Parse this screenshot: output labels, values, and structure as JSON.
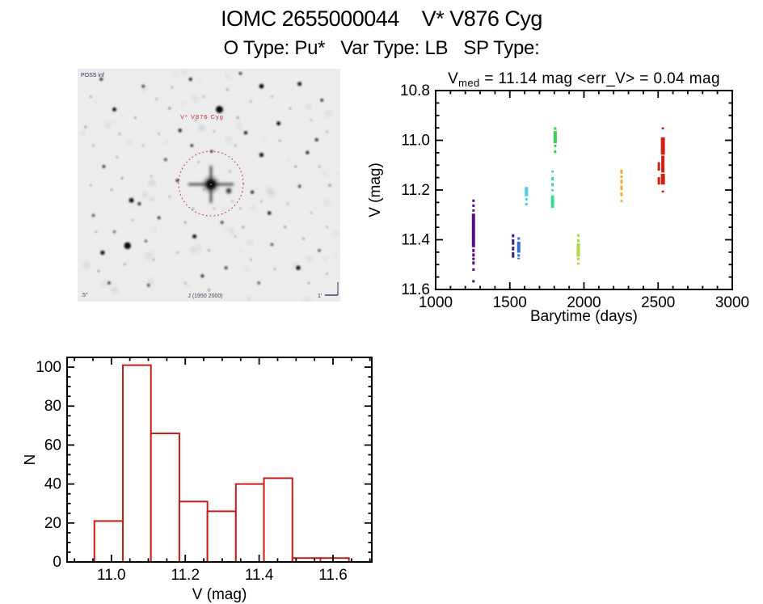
{
  "header": {
    "title": "IOMC 2655000044    V* V876 Cyg",
    "subtitle": "O Type: Pu*   Var Type: LB   SP Type:"
  },
  "chart_data": [
    {
      "id": "finding_chart",
      "type": "starfield-image",
      "description": "Optical finding chart, inverted grayscale, target star circled",
      "background_color": "#ececec",
      "circle_color": "#c43434",
      "labels": {
        "top_left": "POSS inf",
        "target_label": "V* V876 Cyg",
        "bottom_left": ".5°",
        "bottom_center": "J (1950 2000)",
        "scale_label": "1'"
      },
      "target_circle": {
        "cx": 165,
        "cy": 142,
        "r": 40
      },
      "center_star": {
        "x": 165,
        "y": 143,
        "core_r": 6.5,
        "spike_h": 56,
        "spike_v": 46
      },
      "companion_star": {
        "x": 187,
        "y": 151,
        "r": 3.2
      },
      "stars": [
        [
          54,
          17.5,
          4.4,
          1
        ],
        [
          19,
          76,
          4.2,
          1
        ],
        [
          20.5,
          56.5,
          3.0,
          0.95
        ],
        [
          23.5,
          58,
          2.0,
          0.85
        ],
        [
          70,
          37,
          2.7,
          0.95
        ],
        [
          76.5,
          23.5,
          2.5,
          0.95
        ],
        [
          70,
          7.5,
          2.9,
          1
        ],
        [
          84.5,
          6.5,
          2.5,
          0.95
        ],
        [
          14,
          17.5,
          2.5,
          0.95
        ],
        [
          9.5,
          79,
          2.7,
          0.95
        ],
        [
          44.5,
          72,
          2.5,
          0.95
        ],
        [
          84,
          85.5,
          2.7,
          0.95
        ],
        [
          73,
          62,
          2.3,
          0.9
        ],
        [
          66.5,
          53,
          2.1,
          0.85
        ],
        [
          64,
          27.5,
          2.2,
          0.9
        ],
        [
          39,
          26.5,
          2.2,
          0.9
        ],
        [
          43.5,
          33,
          1.9,
          0.8
        ],
        [
          51,
          35.5,
          1.7,
          0.85
        ],
        [
          87.5,
          36,
          2.1,
          0.9
        ],
        [
          91,
          30.5,
          2.0,
          0.85
        ],
        [
          55,
          66,
          1.8,
          0.8
        ],
        [
          47.5,
          89,
          2.1,
          0.85
        ],
        [
          56.5,
          85.5,
          1.9,
          0.8
        ],
        [
          31,
          64,
          1.9,
          0.8
        ],
        [
          33.5,
          39,
          1.8,
          0.75
        ],
        [
          84.5,
          50.5,
          1.8,
          0.8
        ],
        [
          9,
          4.5,
          2.0,
          0.85
        ],
        [
          25,
          7.5,
          1.8,
          0.8
        ],
        [
          43,
          4.5,
          2.0,
          0.9
        ],
        [
          62,
          2,
          1.8,
          0.85
        ],
        [
          93,
          13.5,
          1.9,
          0.85
        ],
        [
          10,
          42,
          1.9,
          0.8
        ],
        [
          6,
          63,
          1.7,
          0.75
        ],
        [
          14,
          70,
          1.6,
          0.7
        ],
        [
          26,
          74,
          1.6,
          0.7
        ],
        [
          74,
          75.5,
          1.7,
          0.75
        ],
        [
          92,
          78,
          1.7,
          0.75
        ],
        [
          69,
          92,
          1.7,
          0.75
        ],
        [
          27,
          93,
          1.7,
          0.8
        ],
        [
          12,
          92,
          1.8,
          0.8
        ],
        [
          38,
          48,
          2.0,
          0.85
        ],
        [
          5,
          12,
          1.1,
          0.55
        ],
        [
          16,
          28,
          1.0,
          0.5
        ],
        [
          22,
          21,
          1.1,
          0.55
        ],
        [
          30,
          13,
          1.0,
          0.5
        ],
        [
          36,
          8,
          1.1,
          0.5
        ],
        [
          48,
          12,
          1.0,
          0.5
        ],
        [
          57,
          9,
          1.1,
          0.55
        ],
        [
          66,
          14,
          1.0,
          0.5
        ],
        [
          74,
          12,
          1.0,
          0.5
        ],
        [
          81,
          17,
          1.1,
          0.5
        ],
        [
          89,
          22,
          1.0,
          0.5
        ],
        [
          95,
          27,
          1.0,
          0.5
        ],
        [
          6,
          33,
          1.0,
          0.5
        ],
        [
          15,
          38,
          1.1,
          0.5
        ],
        [
          25,
          33,
          1.0,
          0.45
        ],
        [
          31,
          28,
          1.0,
          0.45
        ],
        [
          45,
          22,
          1.1,
          0.5
        ],
        [
          52,
          27,
          1.0,
          0.5
        ],
        [
          60,
          33,
          1.0,
          0.5
        ],
        [
          77,
          31,
          1.0,
          0.5
        ],
        [
          92,
          42,
          1.0,
          0.5
        ],
        [
          5,
          50,
          1.0,
          0.5
        ],
        [
          13,
          52,
          1.1,
          0.5
        ],
        [
          28,
          46,
          1.0,
          0.45
        ],
        [
          35,
          55,
          1.0,
          0.5
        ],
        [
          44,
          60,
          1.1,
          0.5
        ],
        [
          52,
          60,
          1.0,
          0.45
        ],
        [
          62,
          60,
          1.0,
          0.5
        ],
        [
          70,
          57,
          1.0,
          0.5
        ],
        [
          80,
          58,
          1.0,
          0.45
        ],
        [
          89,
          62,
          1.0,
          0.5
        ],
        [
          95,
          68,
          1.0,
          0.5
        ],
        [
          7,
          70,
          1.0,
          0.5
        ],
        [
          18,
          84,
          1.1,
          0.5
        ],
        [
          29,
          82,
          1.0,
          0.5
        ],
        [
          38,
          79,
          1.0,
          0.5
        ],
        [
          50,
          78,
          1.1,
          0.5
        ],
        [
          60,
          72,
          1.0,
          0.5
        ],
        [
          66,
          82,
          1.0,
          0.5
        ],
        [
          75,
          86,
          1.0,
          0.5
        ],
        [
          88,
          92,
          1.1,
          0.5
        ],
        [
          95,
          88,
          1.0,
          0.5
        ],
        [
          41,
          92,
          1.0,
          0.5
        ],
        [
          21,
          65,
          1.0,
          0.45
        ],
        [
          58,
          44,
          1.0,
          0.5
        ],
        [
          46,
          40,
          1.0,
          0.45
        ],
        [
          35,
          17,
          1.3,
          0.6
        ],
        [
          61,
          21,
          1.2,
          0.55
        ],
        [
          83,
          42,
          1.2,
          0.55
        ],
        [
          17,
          47,
          1.2,
          0.55
        ],
        [
          63,
          68,
          1.2,
          0.55
        ],
        [
          41,
          66,
          1.2,
          0.5
        ],
        [
          79,
          68,
          1.2,
          0.55
        ],
        [
          86,
          73,
          1.1,
          0.5
        ],
        [
          50,
          95,
          1.2,
          0.55
        ],
        [
          8,
          87,
          1.2,
          0.55
        ],
        [
          96,
          50,
          1.3,
          0.6
        ],
        [
          3,
          25,
          1.2,
          0.5
        ],
        [
          48,
          52,
          1.0,
          0.4
        ],
        [
          59,
          57,
          1.0,
          0.45
        ]
      ]
    },
    {
      "id": "light_curve",
      "type": "scatter",
      "title": {
        "pre": "V",
        "sub": "med",
        "post": " = 11.14 mag <err_V> = 0.04 mag"
      },
      "xlabel": "Barytime (days)",
      "ylabel": "V (mag)",
      "xlim": [
        1000,
        3000
      ],
      "ylim_top_to_bottom": [
        10.8,
        11.6
      ],
      "xticks": [
        1000,
        1500,
        2000,
        2500,
        3000
      ],
      "x_minor_step": 100,
      "yticks": [
        10.8,
        11.0,
        11.2,
        11.4,
        11.6
      ],
      "y_minor_step": 0.05,
      "grid": false,
      "legend": "none",
      "clusters": [
        {
          "name": "epoch-1",
          "x": 1255,
          "color": "#56107f",
          "segments": [
            [
              11.238,
              11.248
            ],
            [
              11.258,
              11.268
            ],
            [
              11.278,
              11.287
            ],
            [
              11.295,
              11.43,
              4
            ],
            [
              11.437,
              11.45
            ],
            [
              11.455,
              11.468
            ],
            [
              11.472,
              11.482
            ],
            [
              11.487,
              11.5
            ],
            [
              11.515,
              11.525
            ],
            [
              11.562,
              11.572
            ]
          ]
        },
        {
          "name": "epoch-2a",
          "x": 1522,
          "color": "#2a2480",
          "segments": [
            [
              11.378,
              11.39
            ],
            [
              11.398,
              11.42
            ],
            [
              11.428,
              11.443
            ],
            [
              11.45,
              11.472
            ]
          ]
        },
        {
          "name": "epoch-2b",
          "x": 1560,
          "color": "#2f6fd6",
          "segments": [
            [
              11.39,
              11.4
            ],
            [
              11.408,
              11.452,
              4
            ],
            [
              11.458,
              11.468
            ],
            [
              11.472,
              11.478
            ]
          ]
        },
        {
          "name": "epoch-3",
          "x": 1612,
          "color": "#43d1e8",
          "segments": [
            [
              11.188,
              11.225,
              4
            ],
            [
              11.232,
              11.242
            ],
            [
              11.252,
              11.262
            ]
          ]
        },
        {
          "name": "epoch-4",
          "x": 1788,
          "color": "#35dc96",
          "segments": [
            [
              11.122,
              11.13
            ],
            [
              11.148,
              11.162
            ],
            [
              11.172,
              11.185
            ],
            [
              11.197,
              11.205
            ],
            [
              11.222,
              11.272,
              4
            ]
          ]
        },
        {
          "name": "epoch-5",
          "x": 1806,
          "color": "#3bd34b",
          "segments": [
            [
              10.948,
              10.958
            ],
            [
              10.963,
              11.012,
              4
            ],
            [
              11.018,
              11.028
            ],
            [
              11.04,
              11.052
            ]
          ]
        },
        {
          "name": "epoch-6",
          "x": 1962,
          "color": "#abda3c",
          "segments": [
            [
              11.378,
              11.388
            ],
            [
              11.398,
              11.41
            ],
            [
              11.415,
              11.468,
              4
            ],
            [
              11.472,
              11.482
            ],
            [
              11.492,
              11.5
            ]
          ]
        },
        {
          "name": "epoch-7",
          "x": 2253,
          "color": "#f3b02c",
          "segments": [
            [
              11.118,
              11.135
            ],
            [
              11.142,
              11.152
            ],
            [
              11.158,
              11.175
            ],
            [
              11.182,
              11.2
            ],
            [
              11.21,
              11.225
            ],
            [
              11.24,
              11.248
            ]
          ]
        },
        {
          "name": "epoch-8a",
          "x": 2505,
          "color": "#d11f10",
          "segments": [
            [
              11.088,
              11.122
            ],
            [
              11.148,
              11.178
            ]
          ]
        },
        {
          "name": "epoch-8b",
          "x": 2532,
          "color": "#d11f10",
          "segments": [
            [
              10.948,
              10.956
            ],
            [
              10.988,
              11.058,
              5
            ],
            [
              11.062,
              11.13,
              4
            ],
            [
              11.135,
              11.178,
              5
            ],
            [
              11.202,
              11.21
            ]
          ]
        }
      ]
    },
    {
      "id": "histogram",
      "type": "bar",
      "title": "",
      "xlabel": "V (mag)",
      "ylabel": "N",
      "bar_color": "#cb1d17",
      "bar_fill": "#ffffff",
      "xlim": [
        10.88,
        11.705
      ],
      "ylim": [
        0,
        105
      ],
      "xticks": [
        11.0,
        11.2,
        11.4,
        11.6
      ],
      "x_minor_step": 0.05,
      "yticks": [
        0,
        20,
        40,
        60,
        80,
        100
      ],
      "y_minor_step": 5,
      "grid": false,
      "bin_edges": [
        10.954,
        11.031,
        11.107,
        11.184,
        11.26,
        11.337,
        11.413,
        11.49,
        11.566,
        11.643
      ],
      "counts": [
        21,
        101,
        66,
        31,
        26,
        40,
        43,
        2,
        2
      ]
    }
  ]
}
